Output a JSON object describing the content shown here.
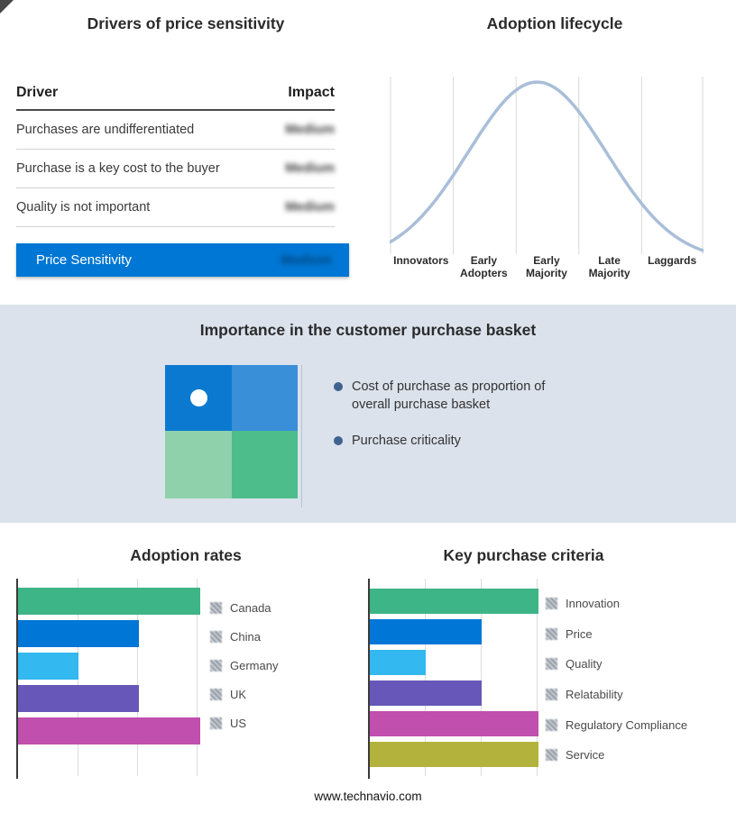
{
  "drivers_panel": {
    "title": "Drivers of price sensitivity",
    "columns": {
      "driver": "Driver",
      "impact": "Impact"
    },
    "rows": [
      {
        "driver": "Purchases are undifferentiated",
        "impact": "Medium"
      },
      {
        "driver": "Purchase is a key cost to the buyer",
        "impact": "Medium"
      },
      {
        "driver": "Quality is not important",
        "impact": "Medium"
      }
    ],
    "summary_row": {
      "label": "Price Sensitivity",
      "impact": "Medium"
    },
    "accent_color": "#0077d4"
  },
  "basket_panel": {
    "title": "Importance in the customer purchase basket",
    "bullets": [
      "Cost of purchase as proportion of overall purchase basket",
      "Purchase criticality"
    ],
    "quadrant": {
      "top_left": "#0b79d0",
      "top_right": "#3a8fd9",
      "bottom_left": "#8ed1ab",
      "bottom_right": "#4cbd8b"
    },
    "bullet_color": "#40628e",
    "band_color": "#dbe2ec"
  },
  "footer": {
    "url": "www.technavio.com"
  },
  "chart_data": [
    {
      "id": "adoption-lifecycle",
      "type": "line",
      "title": "Adoption lifecycle",
      "categories": [
        "Innovators",
        "Early Adopters",
        "Early Majority",
        "Late Majority",
        "Laggards"
      ],
      "curve": {
        "shape": "bell",
        "peak_position": 0.47,
        "spread": 0.22,
        "peak_stage": "Early Majority"
      },
      "line_color": "#a9bed8",
      "grid": "vertical",
      "legend_position": "none"
    },
    {
      "id": "adoption-rates",
      "type": "bar",
      "orientation": "horizontal",
      "title": "Adoption rates",
      "categories": [
        "Canada",
        "China",
        "Germany",
        "UK",
        "US"
      ],
      "values": [
        3,
        2,
        1,
        2,
        3
      ],
      "xlim": [
        0,
        3.05
      ],
      "colors": [
        "#3db586",
        "#0076d6",
        "#33b8f0",
        "#6757b8",
        "#c04fae"
      ],
      "grid": "vertical",
      "legend_position": "right"
    },
    {
      "id": "key-purchase-criteria",
      "type": "bar",
      "orientation": "horizontal",
      "title": "Key purchase criteria",
      "categories": [
        "Innovation",
        "Price",
        "Quality",
        "Relatability",
        "Regulatory Compliance",
        "Service"
      ],
      "values": [
        3,
        2,
        1,
        2,
        3,
        3
      ],
      "xlim": [
        0,
        3.15
      ],
      "colors": [
        "#3db586",
        "#0076d6",
        "#33b8f0",
        "#6757b8",
        "#c04fae",
        "#b2b23c"
      ],
      "grid": "vertical",
      "legend_position": "right"
    }
  ]
}
